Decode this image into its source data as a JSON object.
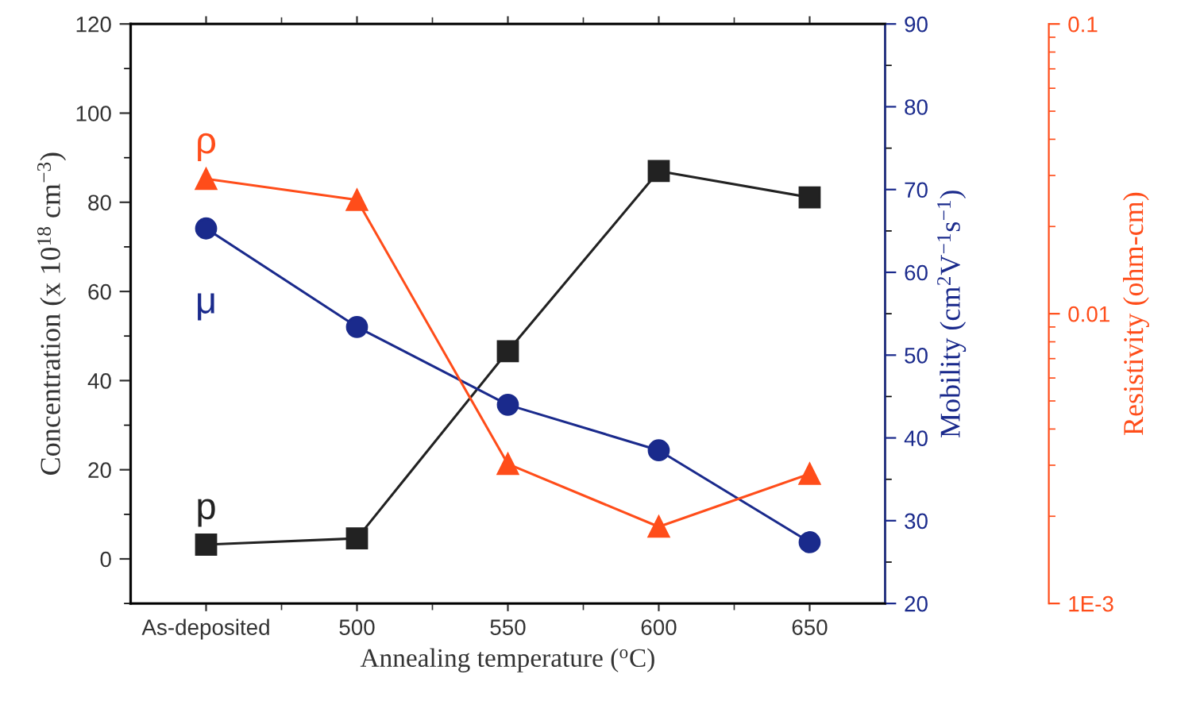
{
  "chart_data": {
    "type": "line",
    "xlabel": "Annealing temperature ($^{o}$C)",
    "ylabel": "Concentration (x 10$^{18}$ cm$^{−3}$)",
    "y2label": "Mobility (cm$^{2}$V$^{−1}$s$^{−1}$)",
    "y3label": "Resistivity (ohm-cm)",
    "categories": [
      "As-deposited",
      "500",
      "550",
      "600",
      "650"
    ],
    "ylim": [
      -10,
      120
    ],
    "yticks": [
      0,
      20,
      40,
      60,
      80,
      100,
      120
    ],
    "y2lim": [
      20,
      90
    ],
    "y2ticks": [
      20,
      30,
      40,
      50,
      60,
      70,
      80,
      90
    ],
    "y3lim": [
      0.001,
      0.1
    ],
    "y3ticks": [
      {
        "value": 0.001,
        "label": "1E-3"
      },
      {
        "value": 0.01,
        "label": "0.01"
      },
      {
        "value": 0.1,
        "label": "0.1"
      }
    ],
    "log": "y3",
    "series": [
      {
        "name": "p",
        "color": "#222222",
        "marker": "square",
        "values": [
          3.2,
          4.6,
          46.6,
          87.0,
          81.1
        ]
      },
      {
        "name": "μ",
        "color": "#1a2a8c",
        "marker": "circle",
        "axis": "y2",
        "values": [
          65.3,
          53.4,
          44.0,
          38.5,
          27.4
        ]
      },
      {
        "name": "ρ",
        "color": "#ff4d1a",
        "marker": "triangle",
        "axis": "y3",
        "values": [
          0.0292,
          0.0247,
          0.00303,
          0.00184,
          0.0028
        ]
      }
    ]
  }
}
